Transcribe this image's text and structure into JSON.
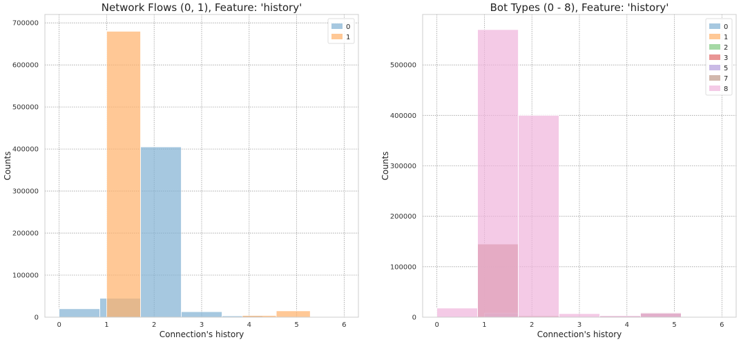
{
  "chart_data": [
    {
      "type": "bar",
      "title": "Network Flows (0, 1), Feature: 'history'",
      "xlabel": "Connection's history",
      "ylabel": "Counts",
      "xlim": [
        -0.3,
        6.3
      ],
      "ylim": [
        0,
        720000
      ],
      "xticks": [
        0,
        1,
        2,
        3,
        4,
        5,
        6
      ],
      "yticks": [
        0,
        100000,
        200000,
        300000,
        400000,
        500000,
        600000,
        700000
      ],
      "grid": true,
      "legend_position": "top-right",
      "bin_edges": [
        0,
        0.857,
        1.714,
        2.571,
        3.429,
        4.286,
        5.143,
        6.0
      ],
      "series": [
        {
          "name": "0",
          "color": "#80b1d3",
          "edges": [
            0,
            0.857,
            1.714,
            2.571,
            3.429,
            4.286,
            5.143,
            6.0
          ],
          "values": [
            20000,
            45000,
            405000,
            13000,
            3000,
            0,
            0
          ]
        },
        {
          "name": "1",
          "color": "#ffb06a",
          "edges": [
            1.0,
            1.714,
            2.429,
            3.143,
            3.857,
            4.571,
            5.286,
            6.0
          ],
          "values": [
            680000,
            0,
            0,
            0,
            4000,
            15000,
            0
          ]
        }
      ]
    },
    {
      "type": "bar",
      "title": "Bot Types (0 - 8), Feature: 'history'",
      "xlabel": "Connection's history",
      "ylabel": "Counts",
      "xlim": [
        -0.3,
        6.3
      ],
      "ylim": [
        0,
        600000
      ],
      "xticks": [
        0,
        1,
        2,
        3,
        4,
        5,
        6
      ],
      "yticks": [
        0,
        100000,
        200000,
        300000,
        400000,
        500000
      ],
      "grid": true,
      "legend_position": "top-right",
      "series": [
        {
          "name": "0",
          "color": "#80b1d3",
          "edges": [
            1.0,
            1.714
          ],
          "values": [
            0
          ]
        },
        {
          "name": "1",
          "color": "#ffb06a",
          "edges": [
            1.0,
            1.714
          ],
          "values": [
            0
          ]
        },
        {
          "name": "2",
          "color": "#7fc97f",
          "edges": [
            1.0,
            1.714
          ],
          "values": [
            0
          ]
        },
        {
          "name": "3",
          "color": "#e06666",
          "edges": [
            0.857,
            1.714,
            2.571
          ],
          "values": [
            145000,
            0
          ]
        },
        {
          "name": "5",
          "color": "#b39ddb",
          "edges": [
            1.0,
            1.714,
            2.571,
            3.429,
            4.286,
            5.143
          ],
          "values": [
            8000,
            0,
            0,
            3000,
            9000
          ]
        },
        {
          "name": "7",
          "color": "#bf9a8a",
          "edges": [
            0.857,
            1.714,
            2.571,
            3.429,
            4.286,
            5.143
          ],
          "values": [
            145000,
            3000,
            0,
            2000,
            9000
          ]
        },
        {
          "name": "8",
          "color": "#f0b3dc",
          "edges": [
            0,
            0.857,
            1.714,
            2.571,
            3.429,
            4.286,
            5.143,
            6.0
          ],
          "values": [
            18000,
            570000,
            400000,
            7000,
            3000,
            8000,
            0
          ]
        }
      ]
    }
  ]
}
